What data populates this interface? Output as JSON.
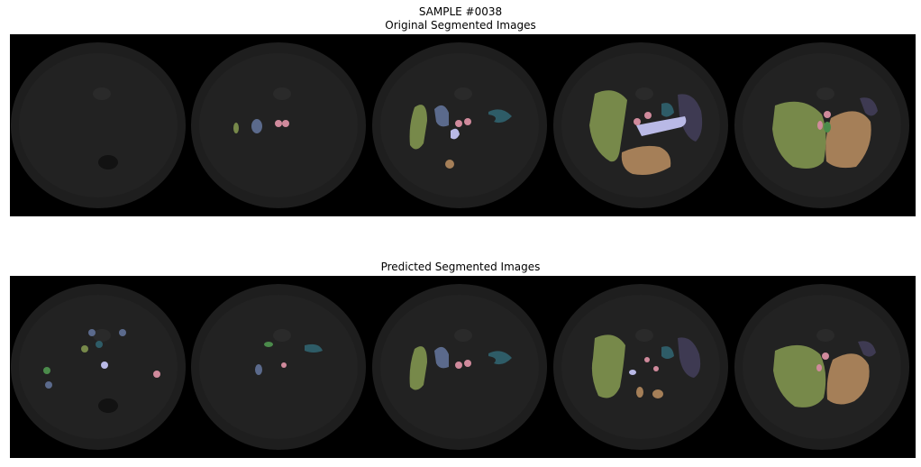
{
  "figure": {
    "sample_label": "SAMPLE #0038",
    "top_title": "Original Segmented Images",
    "bottom_title": "Predicted Segmented Images",
    "slice_count": 5
  },
  "colors": {
    "background": "#000000",
    "body": "#1e1e1e",
    "body_inner": "#222222",
    "liver": "#77894a",
    "stomach": "#3e3a52",
    "spleen": "#2e5c67",
    "pancreas": "#b9b9e6",
    "vessels": "#d08a9c",
    "kidney": "#a57f58",
    "gallbladder": "#4b8b4b",
    "left_kidney": "#5b6a8c"
  }
}
